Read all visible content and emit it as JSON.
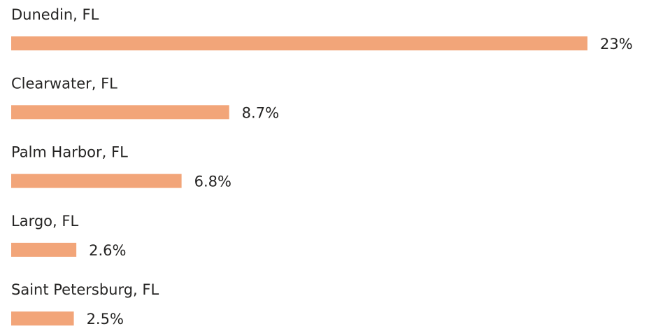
{
  "chart_data": {
    "type": "bar",
    "orientation": "horizontal",
    "categories": [
      "Dunedin, FL",
      "Clearwater, FL",
      "Palm Harbor, FL",
      "Largo, FL",
      "Saint Petersburg, FL"
    ],
    "values": [
      23,
      8.7,
      6.8,
      2.6,
      2.5
    ],
    "value_labels": [
      "23%",
      "8.7%",
      "6.8%",
      "2.6%",
      "2.5%"
    ],
    "color": "#f2a579"
  }
}
